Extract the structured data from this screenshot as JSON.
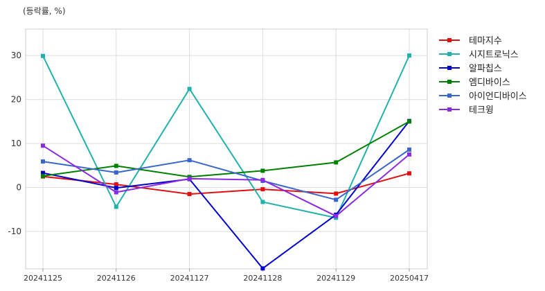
{
  "chart_data": {
    "type": "line",
    "unit_label": "(등락률, %)",
    "categories": [
      "20241125",
      "20241126",
      "20241127",
      "20241128",
      "20241129",
      "20250417"
    ],
    "ylim": [
      -18.5,
      36
    ],
    "yticks": [
      -10,
      0,
      10,
      20,
      30
    ],
    "grid": true,
    "legend_position": "right",
    "series": [
      {
        "name": "테마지수",
        "color": "#dd1111",
        "values": [
          2.5,
          0.7,
          -1.5,
          -0.4,
          -1.4,
          3.2
        ]
      },
      {
        "name": "시지트로닉스",
        "color": "#20b2aa",
        "values": [
          29.9,
          -4.4,
          22.4,
          -3.3,
          -6.9,
          30.0
        ]
      },
      {
        "name": "알파칩스",
        "color": "#0000cc",
        "values": [
          3.3,
          -0.1,
          1.9,
          -18.4,
          -6.2,
          15.1
        ]
      },
      {
        "name": "엠디바이스",
        "color": "#008000",
        "values": [
          2.6,
          4.9,
          2.4,
          3.8,
          5.7,
          15.0
        ]
      },
      {
        "name": "아이언디바이스",
        "color": "#3a66cc",
        "values": [
          5.9,
          3.4,
          6.2,
          1.5,
          -2.8,
          8.6
        ]
      },
      {
        "name": "테크윙",
        "color": "#8a2be2",
        "values": [
          9.5,
          -1.1,
          2.0,
          1.7,
          -6.5,
          7.5
        ]
      }
    ]
  }
}
